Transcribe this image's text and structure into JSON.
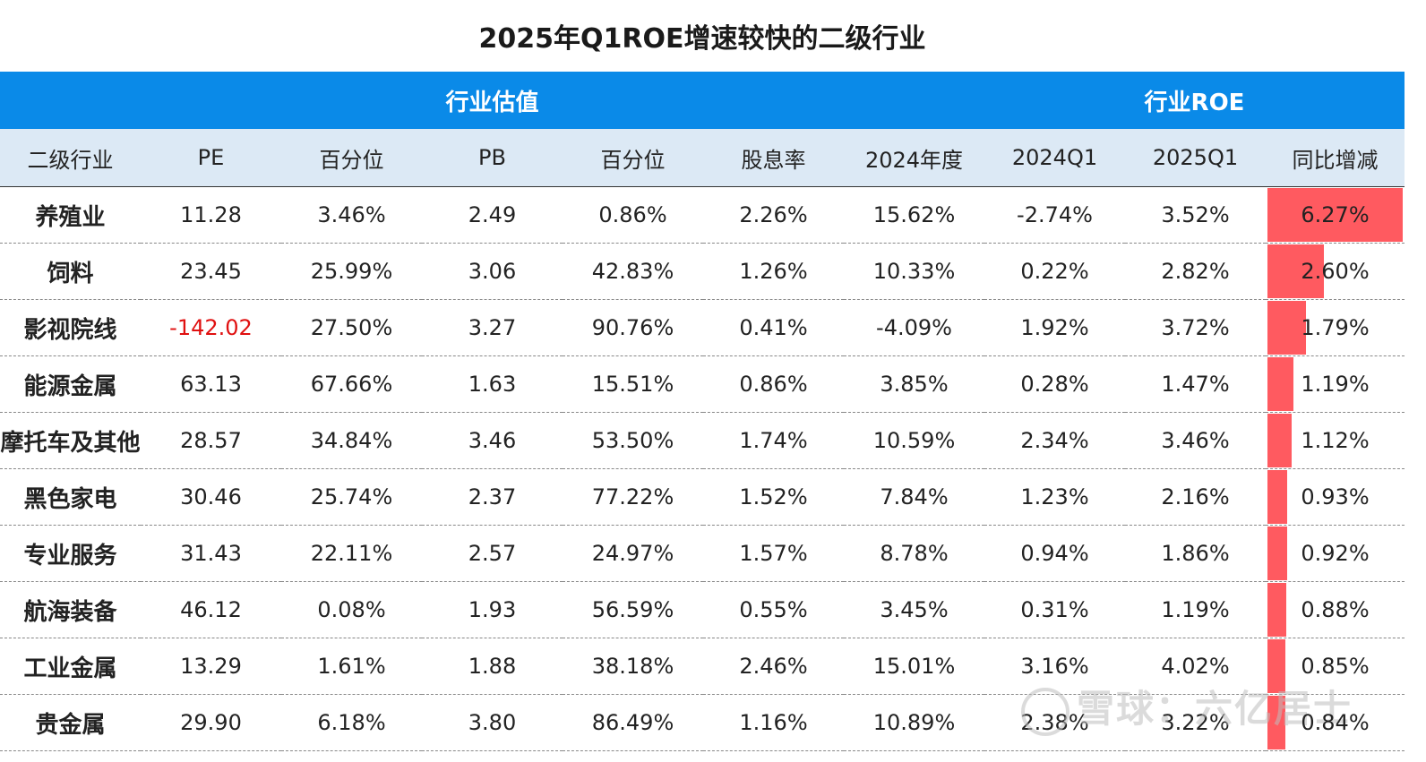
{
  "title": "2025年Q1ROE增速较快的二级行业",
  "groups": {
    "valuation": "行业估值",
    "roe": "行业ROE"
  },
  "columns": [
    "二级行业",
    "PE",
    "百分位",
    "PB",
    "百分位",
    "股息率",
    "2024年度",
    "2024Q1",
    "2025Q1",
    "同比增减"
  ],
  "colors": {
    "header_blue": "#0a8ae8",
    "subheader_bg": "#dce9f5",
    "bar_red": "#ff5a60",
    "negative_red": "#e01010"
  },
  "chart_data": {
    "type": "table",
    "title": "2025年Q1ROE增速较快的二级行业",
    "columns": [
      "二级行业",
      "PE",
      "百分位",
      "PB",
      "百分位",
      "股息率",
      "2024年度",
      "2024Q1",
      "2025Q1",
      "同比增减"
    ],
    "rows": [
      [
        "养殖业",
        "11.28",
        "3.46%",
        "2.49",
        "0.86%",
        "2.26%",
        "15.62%",
        "-2.74%",
        "3.52%",
        "6.27%"
      ],
      [
        "饲料",
        "23.45",
        "25.99%",
        "3.06",
        "42.83%",
        "1.26%",
        "10.33%",
        "0.22%",
        "2.82%",
        "2.60%"
      ],
      [
        "影视院线",
        "-142.02",
        "27.50%",
        "3.27",
        "90.76%",
        "0.41%",
        "-4.09%",
        "1.92%",
        "3.72%",
        "1.79%"
      ],
      [
        "能源金属",
        "63.13",
        "67.66%",
        "1.63",
        "15.51%",
        "0.86%",
        "3.85%",
        "0.28%",
        "1.47%",
        "1.19%"
      ],
      [
        "摩托车及其他",
        "28.57",
        "34.84%",
        "3.46",
        "53.50%",
        "1.74%",
        "10.59%",
        "2.34%",
        "3.46%",
        "1.12%"
      ],
      [
        "黑色家电",
        "30.46",
        "25.74%",
        "2.37",
        "77.22%",
        "1.52%",
        "7.84%",
        "1.23%",
        "2.16%",
        "0.93%"
      ],
      [
        "专业服务",
        "31.43",
        "22.11%",
        "2.57",
        "24.97%",
        "1.57%",
        "8.78%",
        "0.94%",
        "1.86%",
        "0.92%"
      ],
      [
        "航海装备",
        "46.12",
        "0.08%",
        "1.93",
        "56.59%",
        "0.55%",
        "3.45%",
        "0.31%",
        "1.19%",
        "0.88%"
      ],
      [
        "工业金属",
        "13.29",
        "1.61%",
        "1.88",
        "38.18%",
        "2.46%",
        "15.01%",
        "3.16%",
        "4.02%",
        "0.85%"
      ],
      [
        "贵金属",
        "29.90",
        "6.18%",
        "3.80",
        "86.49%",
        "1.16%",
        "10.89%",
        "2.38%",
        "3.22%",
        "0.84%"
      ]
    ],
    "bar_column": "同比增减",
    "bar_values": [
      6.27,
      2.6,
      1.79,
      1.19,
      1.12,
      0.93,
      0.92,
      0.88,
      0.85,
      0.84
    ],
    "bar_max": 6.27
  },
  "watermark": "雪球：六亿居士"
}
